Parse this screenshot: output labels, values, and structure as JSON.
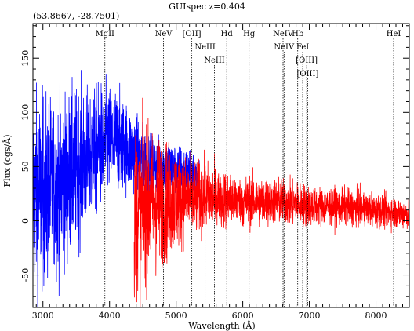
{
  "chart_data": {
    "type": "line",
    "title": "GUIspec z=0.404",
    "coords": "(53.8667, -28.7501)",
    "xlabel": "Wavelength (Å)",
    "ylabel": "Flux (cgs/Å)",
    "xlim": [
      2850,
      8500
    ],
    "ylim": [
      -80,
      182
    ],
    "xticks": [
      3000,
      4000,
      5000,
      6000,
      7000,
      8000
    ],
    "yticks": [
      -50,
      0,
      50,
      100,
      150
    ],
    "xtick_labels": [
      "3000",
      "4000",
      "5000",
      "6000",
      "7000",
      "8000"
    ],
    "ytick_labels": [
      "-50",
      "0",
      "50",
      "100",
      "150"
    ],
    "series": [
      {
        "color": "#0000ff",
        "x_range": [
          2850,
          5350
        ],
        "trend": [
          [
            2850,
            25
          ],
          [
            3200,
            30
          ],
          [
            3600,
            55
          ],
          [
            3900,
            70
          ],
          [
            4100,
            75
          ],
          [
            4300,
            65
          ],
          [
            4600,
            52
          ],
          [
            5000,
            48
          ],
          [
            5350,
            42
          ]
        ],
        "noise": [
          [
            2850,
            65
          ],
          [
            3300,
            55
          ],
          [
            3800,
            42
          ],
          [
            4200,
            30
          ],
          [
            4600,
            20
          ],
          [
            5000,
            16
          ],
          [
            5350,
            14
          ]
        ]
      },
      {
        "color": "#ff0000",
        "x_range": [
          4370,
          8500
        ],
        "trend": [
          [
            4370,
            5
          ],
          [
            4600,
            15
          ],
          [
            5000,
            20
          ],
          [
            5500,
            22
          ],
          [
            6000,
            18
          ],
          [
            6500,
            18
          ],
          [
            7000,
            14
          ],
          [
            7500,
            13
          ],
          [
            8000,
            10
          ],
          [
            8500,
            6
          ]
        ],
        "noise": [
          [
            4370,
            55
          ],
          [
            4800,
            40
          ],
          [
            5200,
            25
          ],
          [
            5800,
            18
          ],
          [
            6500,
            15
          ],
          [
            7500,
            12
          ],
          [
            8500,
            10
          ]
        ]
      }
    ],
    "lines": [
      {
        "label": "MgII",
        "x": 3930,
        "row": 0
      },
      {
        "label": "NeV",
        "x": 4810,
        "row": 0
      },
      {
        "label": "[OII]",
        "x": 5235,
        "row": 0
      },
      {
        "label": "NeIII",
        "x": 5435,
        "row": 1
      },
      {
        "label": "NeIII",
        "x": 5575,
        "row": 2
      },
      {
        "label": "Hd",
        "x": 5760,
        "row": 0
      },
      {
        "label": "Hg",
        "x": 6095,
        "row": 0
      },
      {
        "label": "NeIV",
        "x": 6605,
        "row": 0
      },
      {
        "label": "NeIV",
        "x": 6620,
        "row": 1
      },
      {
        "label": "Hb",
        "x": 6825,
        "row": 0
      },
      {
        "label": "FeI",
        "x": 6900,
        "row": 1
      },
      {
        "label": "[OIII]",
        "x": 6960,
        "row": 2
      },
      {
        "label": "[OIII]",
        "x": 6975,
        "row": 3
      },
      {
        "label": "HeI",
        "x": 8265,
        "row": 0
      }
    ]
  }
}
